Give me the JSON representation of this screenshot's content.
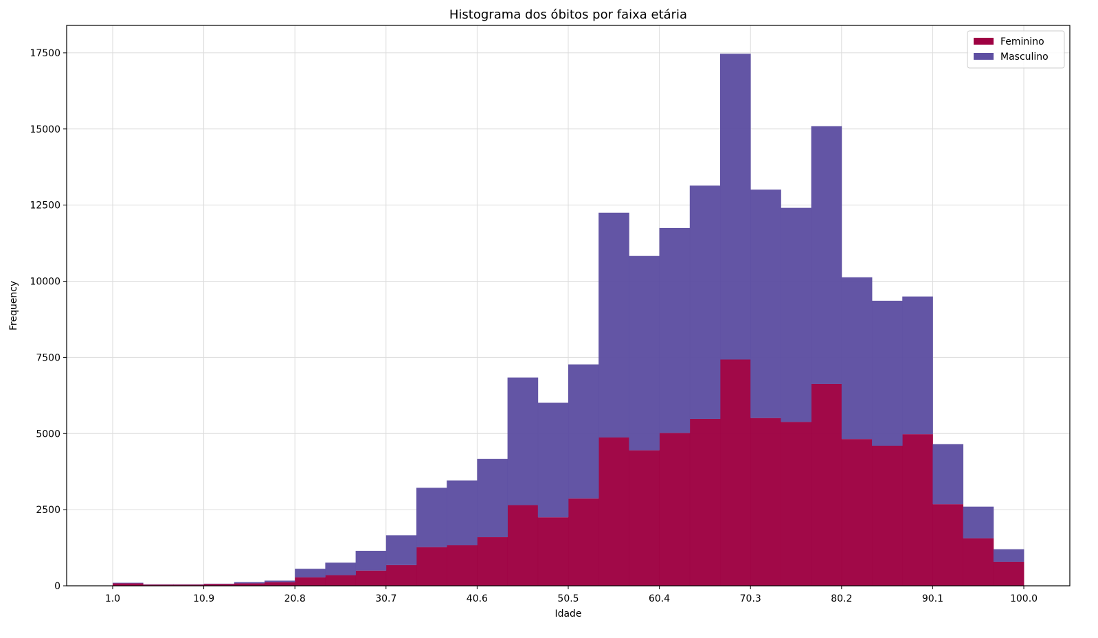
{
  "chart_data": {
    "type": "bar",
    "subtype": "stacked-histogram",
    "title": "Histograma dos óbitos por faixa etária",
    "xlabel": "Idade",
    "ylabel": "Frequency",
    "xlim": [
      -4,
      105
    ],
    "ylim": [
      0,
      18400
    ],
    "grid": true,
    "legend_position": "top-right",
    "xticks": [
      {
        "value": 1.0,
        "label": "1.0"
      },
      {
        "value": 10.9,
        "label": "10.9"
      },
      {
        "value": 20.8,
        "label": "20.8"
      },
      {
        "value": 30.7,
        "label": "30.7"
      },
      {
        "value": 40.6,
        "label": "40.6"
      },
      {
        "value": 50.5,
        "label": "50.5"
      },
      {
        "value": 60.4,
        "label": "60.4"
      },
      {
        "value": 70.3,
        "label": "70.3"
      },
      {
        "value": 80.2,
        "label": "80.2"
      },
      {
        "value": 90.1,
        "label": "90.1"
      },
      {
        "value": 100.0,
        "label": "100.0"
      }
    ],
    "yticks": [
      0,
      2500,
      5000,
      7500,
      10000,
      12500,
      15000,
      17500
    ],
    "bin_start": 1.0,
    "bin_end": 100.0,
    "bins": 30,
    "series": [
      {
        "name": "Feminino",
        "color": "#9e0142",
        "values": [
          80,
          40,
          40,
          60,
          80,
          120,
          280,
          350,
          500,
          680,
          1270,
          1330,
          1600,
          2650,
          2250,
          2870,
          4870,
          4450,
          5020,
          5480,
          7430,
          5510,
          5380,
          6630,
          4820,
          4600,
          4980,
          2680,
          1560,
          790
        ]
      },
      {
        "name": "Masculino",
        "color": "#5e4fa2",
        "values": [
          20,
          10,
          10,
          10,
          40,
          50,
          280,
          410,
          650,
          980,
          1950,
          2130,
          2570,
          4190,
          3760,
          4400,
          7380,
          6380,
          6730,
          7660,
          10040,
          7500,
          7030,
          8460,
          5310,
          4760,
          4520,
          1970,
          1040,
          410
        ]
      }
    ]
  }
}
